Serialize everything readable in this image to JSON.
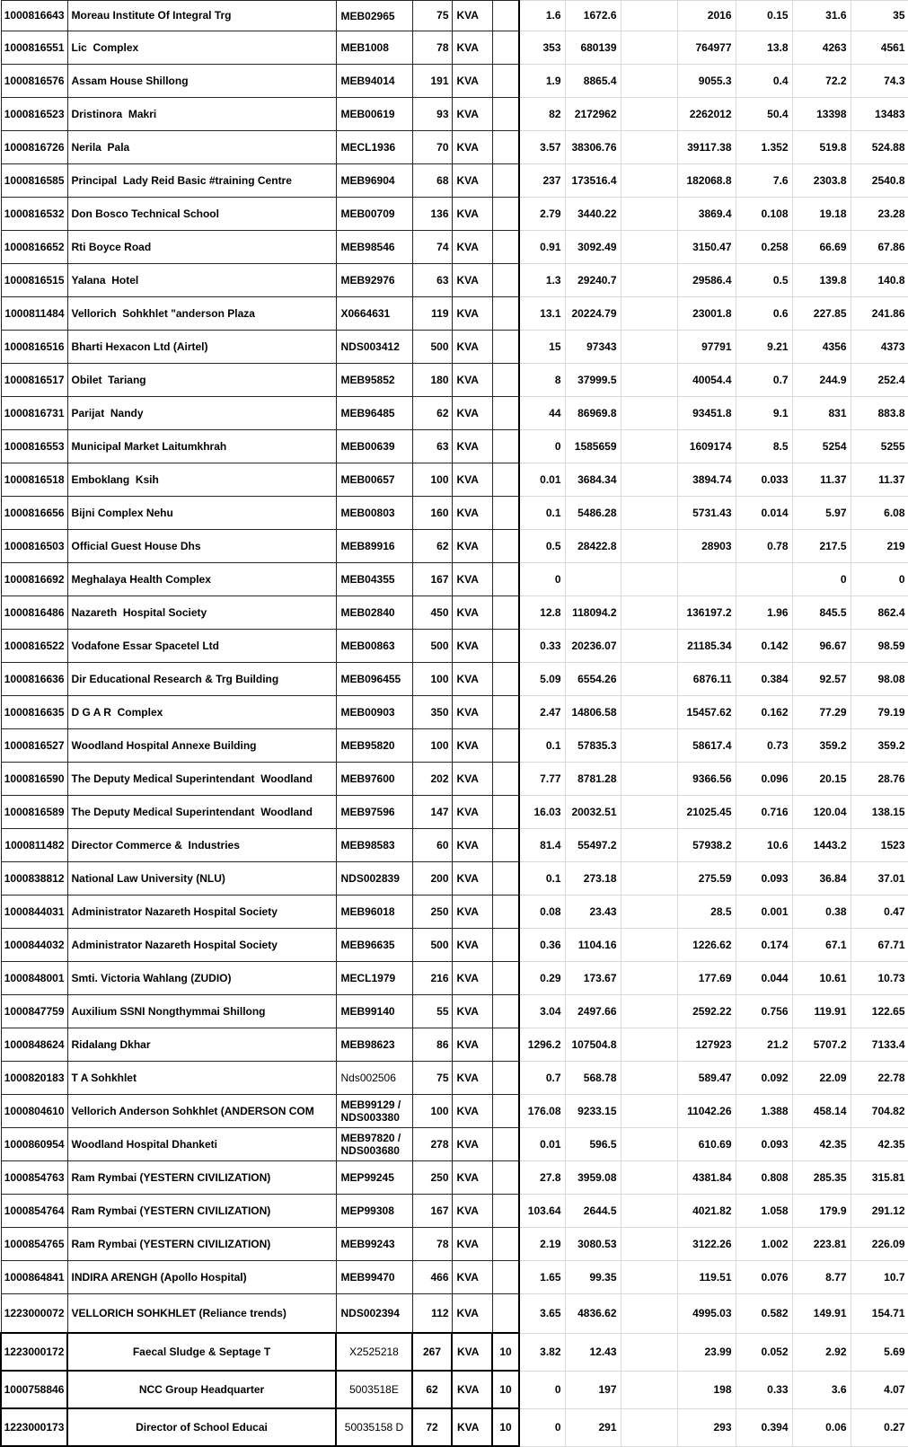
{
  "table": {
    "rows": [
      {
        "id": "1000816643",
        "name": "Moreau Institute Of Integral Trg",
        "meter": "MEB02965",
        "kva": "75",
        "unit": "KVA",
        "extra": "",
        "v1": "1.6",
        "v2": "1672.6",
        "v3": "2016",
        "v4": "0.15",
        "v5": "31.6",
        "v6": "35"
      },
      {
        "id": "1000816551",
        "name": "Lic  Complex",
        "meter": "MEB1008",
        "kva": "78",
        "unit": "KVA",
        "extra": "",
        "v1": "353",
        "v2": "680139",
        "v3": "764977",
        "v4": "13.8",
        "v5": "4263",
        "v6": "4561"
      },
      {
        "id": "1000816576",
        "name": "Assam House Shillong",
        "meter": "MEB94014",
        "kva": "191",
        "unit": "KVA",
        "extra": "",
        "v1": "1.9",
        "v2": "8865.4",
        "v3": "9055.3",
        "v4": "0.4",
        "v5": "72.2",
        "v6": "74.3"
      },
      {
        "id": "1000816523",
        "name": "Dristinora  Makri",
        "meter": "MEB00619",
        "kva": "93",
        "unit": "KVA",
        "extra": "",
        "v1": "82",
        "v2": "2172962",
        "v3": "2262012",
        "v4": "50.4",
        "v5": "13398",
        "v6": "13483"
      },
      {
        "id": "1000816726",
        "name": "Nerila  Pala",
        "meter": "MECL1936",
        "kva": "70",
        "unit": "KVA",
        "extra": "",
        "v1": "3.57",
        "v2": "38306.76",
        "v3": "39117.38",
        "v4": "1.352",
        "v5": "519.8",
        "v6": "524.88"
      },
      {
        "id": "1000816585",
        "name": "Principal  Lady Reid Basic #training Centre",
        "meter": "MEB96904",
        "kva": "68",
        "unit": "KVA",
        "extra": "",
        "v1": "237",
        "v2": "173516.4",
        "v3": "182068.8",
        "v4": "7.6",
        "v5": "2303.8",
        "v6": "2540.8"
      },
      {
        "id": "1000816532",
        "name": "Don Bosco Technical School",
        "meter": "MEB00709",
        "kva": "136",
        "unit": "KVA",
        "extra": "",
        "v1": "2.79",
        "v2": "3440.22",
        "v3": "3869.4",
        "v4": "0.108",
        "v5": "19.18",
        "v6": "23.28"
      },
      {
        "id": "1000816652",
        "name": "Rti Boyce Road",
        "meter": "MEB98546",
        "kva": "74",
        "unit": "KVA",
        "extra": "",
        "v1": "0.91",
        "v2": "3092.49",
        "v3": "3150.47",
        "v4": "0.258",
        "v5": "66.69",
        "v6": "67.86"
      },
      {
        "id": "1000816515",
        "name": "Yalana  Hotel",
        "meter": "MEB92976",
        "kva": "63",
        "unit": "KVA",
        "extra": "",
        "v1": "1.3",
        "v2": "29240.7",
        "v3": "29586.4",
        "v4": "0.5",
        "v5": "139.8",
        "v6": "140.8"
      },
      {
        "id": "1000811484",
        "name": "Vellorich  Sohkhlet \"anderson Plaza",
        "meter": "X0664631",
        "kva": "119",
        "unit": "KVA",
        "extra": "",
        "v1": "13.1",
        "v2": "20224.79",
        "v3": "23001.8",
        "v4": "0.6",
        "v5": "227.85",
        "v6": "241.86"
      },
      {
        "id": "1000816516",
        "name": "Bharti Hexacon Ltd (Airtel)",
        "meter": "NDS003412",
        "kva": "500",
        "unit": "KVA",
        "extra": "",
        "v1": "15",
        "v2": "97343",
        "v3": "97791",
        "v4": "9.21",
        "v5": "4356",
        "v6": "4373"
      },
      {
        "id": "1000816517",
        "name": "Obilet  Tariang",
        "meter": "MEB95852",
        "kva": "180",
        "unit": "KVA",
        "extra": "",
        "v1": "8",
        "v2": "37999.5",
        "v3": "40054.4",
        "v4": "0.7",
        "v5": "244.9",
        "v6": "252.4"
      },
      {
        "id": "1000816731",
        "name": "Parijat  Nandy",
        "meter": "MEB96485",
        "kva": "62",
        "unit": "KVA",
        "extra": "",
        "v1": "44",
        "v2": "86969.8",
        "v3": "93451.8",
        "v4": "9.1",
        "v5": "831",
        "v6": "883.8"
      },
      {
        "id": "1000816553",
        "name": "Municipal Market Laitumkhrah",
        "meter": "MEB00639",
        "kva": "63",
        "unit": "KVA",
        "extra": "",
        "v1": "0",
        "v2": "1585659",
        "v3": "1609174",
        "v4": "8.5",
        "v5": "5254",
        "v6": "5255"
      },
      {
        "id": "1000816518",
        "name": "Emboklang  Ksih",
        "meter": "MEB00657",
        "kva": "100",
        "unit": "KVA",
        "extra": "",
        "v1": "0.01",
        "v2": "3684.34",
        "v3": "3894.74",
        "v4": "0.033",
        "v5": "11.37",
        "v6": "11.37"
      },
      {
        "id": "1000816656",
        "name": "Bijni Complex Nehu",
        "meter": "MEB00803",
        "kva": "160",
        "unit": "KVA",
        "extra": "",
        "v1": "0.1",
        "v2": "5486.28",
        "v3": "5731.43",
        "v4": "0.014",
        "v5": "5.97",
        "v6": "6.08"
      },
      {
        "id": "1000816503",
        "name": "Official Guest House Dhs",
        "meter": "MEB89916",
        "kva": "62",
        "unit": "KVA",
        "extra": "",
        "v1": "0.5",
        "v2": "28422.8",
        "v3": "28903",
        "v4": "0.78",
        "v5": "217.5",
        "v6": "219"
      },
      {
        "id": "1000816692",
        "name": "Meghalaya Health Complex",
        "meter": "MEB04355",
        "kva": "167",
        "unit": "KVA",
        "extra": "",
        "v1": "0",
        "v2": "",
        "v3": "",
        "v4": "",
        "v5": "0",
        "v6": "0"
      },
      {
        "id": "1000816486",
        "name": "Nazareth  Hospital Society",
        "meter": "MEB02840",
        "kva": "450",
        "unit": "KVA",
        "extra": "",
        "v1": "12.8",
        "v2": "118094.2",
        "v3": "136197.2",
        "v4": "1.96",
        "v5": "845.5",
        "v6": "862.4"
      },
      {
        "id": "1000816522",
        "name": "Vodafone Essar Spacetel Ltd",
        "meter": "MEB00863",
        "kva": "500",
        "unit": "KVA",
        "extra": "",
        "v1": "0.33",
        "v2": "20236.07",
        "v3": "21185.34",
        "v4": "0.142",
        "v5": "96.67",
        "v6": "98.59"
      },
      {
        "id": "1000816636",
        "name": "Dir Educational Research & Trg Building",
        "meter": "MEB096455",
        "kva": "100",
        "unit": "KVA",
        "extra": "",
        "v1": "5.09",
        "v2": "6554.26",
        "v3": "6876.11",
        "v4": "0.384",
        "v5": "92.57",
        "v6": "98.08"
      },
      {
        "id": "1000816635",
        "name": "D G A R  Complex",
        "meter": "MEB00903",
        "kva": "350",
        "unit": "KVA",
        "extra": "",
        "v1": "2.47",
        "v2": "14806.58",
        "v3": "15457.62",
        "v4": "0.162",
        "v5": "77.29",
        "v6": "79.19"
      },
      {
        "id": "1000816527",
        "name": "Woodland Hospital Annexe Building",
        "meter": "MEB95820",
        "kva": "100",
        "unit": "KVA",
        "extra": "",
        "v1": "0.1",
        "v2": "57835.3",
        "v3": "58617.4",
        "v4": "0.73",
        "v5": "359.2",
        "v6": "359.2"
      },
      {
        "id": "1000816590",
        "name": "The Deputy Medical Superintendant  Woodland",
        "meter": "MEB97600",
        "kva": "202",
        "unit": "KVA",
        "extra": "",
        "v1": "7.77",
        "v2": "8781.28",
        "v3": "9366.56",
        "v4": "0.096",
        "v5": "20.15",
        "v6": "28.76"
      },
      {
        "id": "1000816589",
        "name": "The Deputy Medical Superintendant  Woodland",
        "meter": "MEB97596",
        "kva": "147",
        "unit": "KVA",
        "extra": "",
        "v1": "16.03",
        "v2": "20032.51",
        "v3": "21025.45",
        "v4": "0.716",
        "v5": "120.04",
        "v6": "138.15"
      },
      {
        "id": "1000811482",
        "name": "Director Commerce &  Industries",
        "meter": "MEB98583",
        "kva": "60",
        "unit": "KVA",
        "extra": "",
        "v1": "81.4",
        "v2": "55497.2",
        "v3": "57938.2",
        "v4": "10.6",
        "v5": "1443.2",
        "v6": "1523"
      },
      {
        "id": "1000838812",
        "name": "National Law University (NLU)",
        "meter": "NDS002839",
        "kva": "200",
        "unit": "KVA",
        "extra": "",
        "v1": "0.1",
        "v2": "273.18",
        "v3": "275.59",
        "v4": "0.093",
        "v5": "36.84",
        "v6": "37.01"
      },
      {
        "id": "1000844031",
        "name": "Administrator Nazareth Hospital Society",
        "meter": "MEB96018",
        "kva": "250",
        "unit": "KVA",
        "extra": "",
        "v1": "0.08",
        "v2": "23.43",
        "v3": "28.5",
        "v4": "0.001",
        "v5": "0.38",
        "v6": "0.47"
      },
      {
        "id": "1000844032",
        "name": "Administrator Nazareth Hospital Society",
        "meter": "MEB96635",
        "kva": "500",
        "unit": "KVA",
        "extra": "",
        "v1": "0.36",
        "v2": "1104.16",
        "v3": "1226.62",
        "v4": "0.174",
        "v5": "67.1",
        "v6": "67.71"
      },
      {
        "id": "1000848001",
        "name": "Smti. Victoria Wahlang (ZUDIO)",
        "meter": "MECL1979",
        "kva": "216",
        "unit": "KVA",
        "extra": "",
        "v1": "0.29",
        "v2": "173.67",
        "v3": "177.69",
        "v4": "0.044",
        "v5": "10.61",
        "v6": "10.73"
      },
      {
        "id": "1000847759",
        "name": "Auxilium SSNI Nongthymmai Shillong",
        "meter": "MEB99140",
        "kva": "55",
        "unit": "KVA",
        "extra": "",
        "v1": "3.04",
        "v2": "2497.66",
        "v3": "2592.22",
        "v4": "0.756",
        "v5": "119.91",
        "v6": "122.65"
      },
      {
        "id": "1000848624",
        "name": "Ridalang Dkhar",
        "meter": "MEB98623",
        "kva": "86",
        "unit": "KVA",
        "extra": "",
        "v1": "1296.2",
        "v2": "107504.8",
        "v3": "127923",
        "v4": "21.2",
        "v5": "5707.2",
        "v6": "7133.4"
      },
      {
        "id": "1000820183",
        "name": "T A Sohkhlet",
        "meter": "Nds002506",
        "kva": "75",
        "unit": "KVA",
        "extra": "",
        "v1": "0.7",
        "v2": "568.78",
        "v3": "589.47",
        "v4": "0.092",
        "v5": "22.09",
        "v6": "22.78",
        "meter_light": true
      },
      {
        "id": "1000804610",
        "name": "Vellorich Anderson Sohkhlet (ANDERSON COM",
        "meter": "MEB99129 /\nNDS003380",
        "kva": "100",
        "unit": "KVA",
        "extra": "",
        "v1": "176.08",
        "v2": "9233.15",
        "v3": "11042.26",
        "v4": "1.388",
        "v5": "458.14",
        "v6": "704.82"
      },
      {
        "id": "1000860954",
        "name": "Woodland Hospital Dhanketi",
        "meter": "MEB97820 /\nNDS003680",
        "kva": "278",
        "unit": "KVA",
        "extra": "",
        "v1": "0.01",
        "v2": "596.5",
        "v3": "610.69",
        "v4": "0.093",
        "v5": "42.35",
        "v6": "42.35"
      },
      {
        "id": "1000854763",
        "name": "Ram Rymbai (YESTERN CIVILIZATION)",
        "meter": "MEP99245",
        "kva": "250",
        "unit": "KVA",
        "extra": "",
        "v1": "27.8",
        "v2": "3959.08",
        "v3": "4381.84",
        "v4": "0.808",
        "v5": "285.35",
        "v6": "315.81"
      },
      {
        "id": "1000854764",
        "name": "Ram Rymbai (YESTERN CIVILIZATION)",
        "meter": "MEP99308",
        "kva": "167",
        "unit": "KVA",
        "extra": "",
        "v1": "103.64",
        "v2": "2644.5",
        "v3": "4021.82",
        "v4": "1.058",
        "v5": "179.9",
        "v6": "291.12"
      },
      {
        "id": "1000854765",
        "name": "Ram Rymbai (YESTERN CIVILIZATION)",
        "meter": "MEB99243",
        "kva": "78",
        "unit": "KVA",
        "extra": "",
        "v1": "2.19",
        "v2": "3080.53",
        "v3": "3122.26",
        "v4": "1.002",
        "v5": "223.81",
        "v6": "226.09"
      },
      {
        "id": "1000864841",
        "name": "INDIRA ARENGH (Apollo Hospital)",
        "meter": "MEB99470",
        "kva": "466",
        "unit": "KVA",
        "extra": "",
        "v1": "1.65",
        "v2": "99.35",
        "v3": "119.51",
        "v4": "0.076",
        "v5": "8.77",
        "v6": "10.7"
      },
      {
        "id": "1223000072",
        "name": "VELLORICH SOHKHLET (Reliance trends)",
        "meter": "NDS002394",
        "kva": "112",
        "unit": "KVA",
        "extra": "",
        "v1": "3.65",
        "v2": "4836.62",
        "v3": "4995.03",
        "v4": "0.582",
        "v5": "149.91",
        "v6": "154.71"
      },
      {
        "id": "1223000172",
        "name": "Faecal Sludge & Septage T",
        "meter": "X2525218",
        "kva": "267",
        "unit": "KVA",
        "extra": "10",
        "v1": "3.82",
        "v2": "12.43",
        "v3": "23.99",
        "v4": "0.052",
        "v5": "2.92",
        "v6": "5.69",
        "variant": "bordered",
        "meter_light": true
      },
      {
        "id": "1000758846",
        "name": "NCC Group Headquarter",
        "meter": "5003518E",
        "kva": "62",
        "unit": "KVA",
        "extra": "10",
        "v1": "0",
        "v2": "197",
        "v3": "198",
        "v4": "0.33",
        "v5": "3.6",
        "v6": "4.07",
        "variant": "bordered",
        "meter_light": true
      },
      {
        "id": "1223000173",
        "name": "Director of School Educai",
        "meter": "50035158 D",
        "kva": "72",
        "unit": "KVA",
        "extra": "10",
        "v1": "0",
        "v2": "291",
        "v3": "293",
        "v4": "0.394",
        "v5": "0.06",
        "v6": "0.27",
        "variant": "bordered",
        "meter_light": true
      }
    ]
  }
}
